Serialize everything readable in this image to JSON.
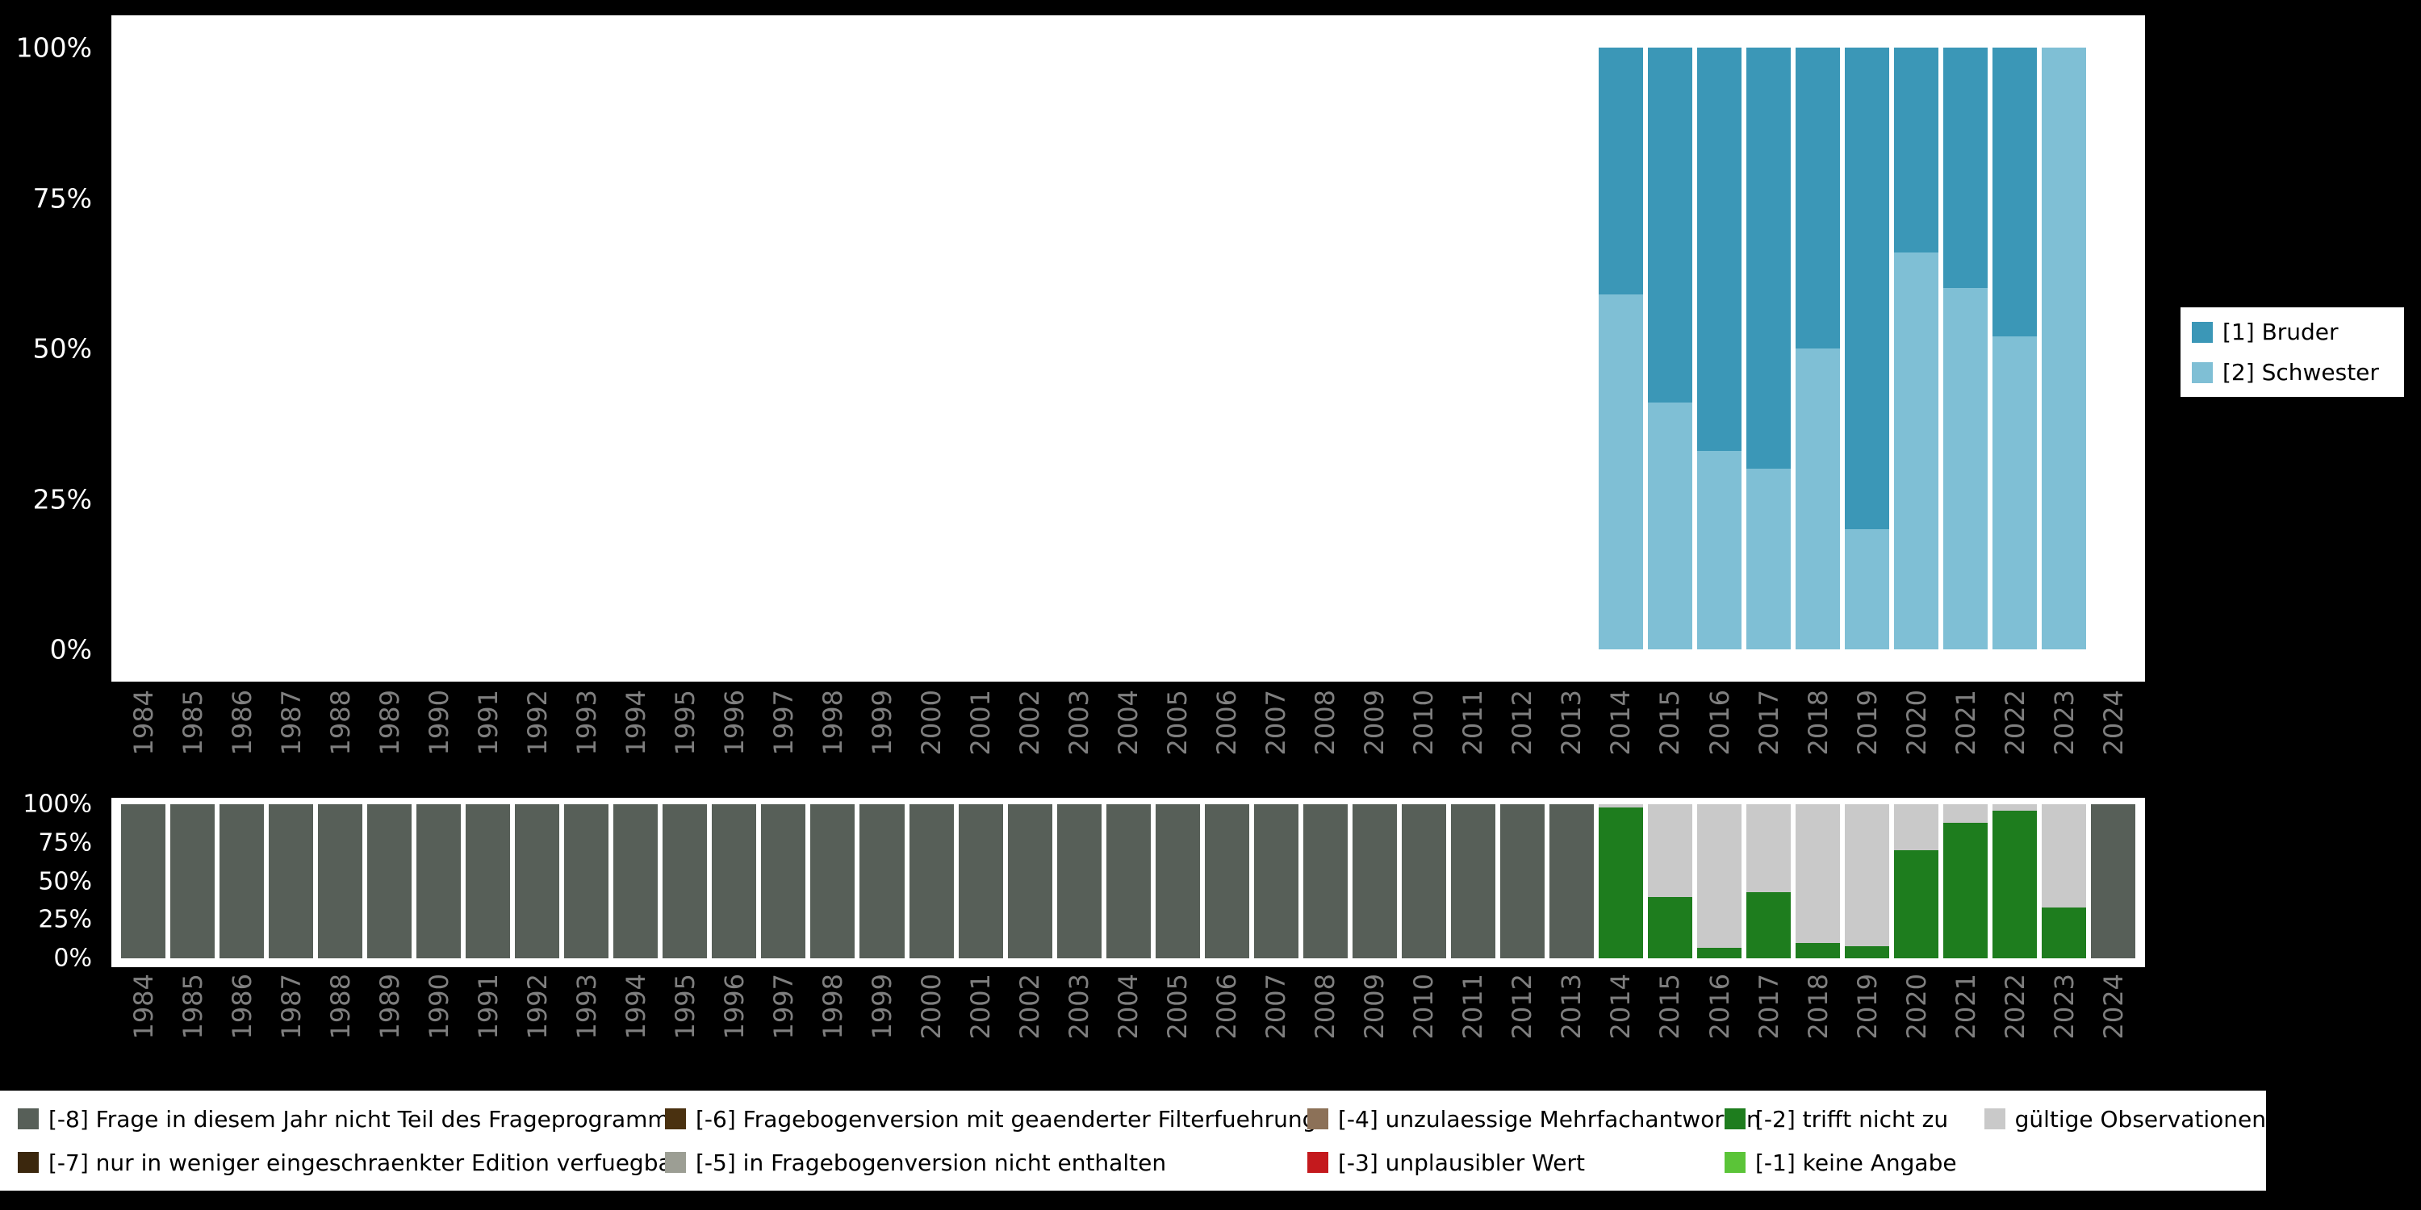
{
  "colors": {
    "background": "#000000",
    "panel": "#ffffff",
    "axis_text": "#ffffff",
    "year_text": "#7f7f7f",
    "bruder": "#3b97b7",
    "schwester": "#7fbfd5",
    "m8": "#575f58",
    "m7": "#3b270d",
    "m6": "#4a3110",
    "m5": "#9c9e94",
    "m4": "#8c7158",
    "m3": "#c4191d",
    "m2": "#1e7d1e",
    "m1": "#5bc438",
    "valid": "#c9c9c9"
  },
  "chart_data": [
    {
      "id": "value-distribution",
      "type": "bar",
      "stacked": true,
      "percent": true,
      "grid": false,
      "legend_position": "right",
      "ylim": [
        0,
        100
      ],
      "y_ticks": [
        "100%",
        "75%",
        "50%",
        "25%",
        "0%"
      ],
      "categories": [
        "1984",
        "1985",
        "1986",
        "1987",
        "1988",
        "1989",
        "1990",
        "1991",
        "1992",
        "1993",
        "1994",
        "1995",
        "1996",
        "1997",
        "1998",
        "1999",
        "2000",
        "2001",
        "2002",
        "2003",
        "2004",
        "2005",
        "2006",
        "2007",
        "2008",
        "2009",
        "2010",
        "2011",
        "2012",
        "2013",
        "2014",
        "2015",
        "2016",
        "2017",
        "2018",
        "2019",
        "2020",
        "2021",
        "2022",
        "2023",
        "2024"
      ],
      "series": [
        {
          "key": "schwester",
          "name": "[2] Schwester",
          "color_key": "schwester",
          "values": [
            null,
            null,
            null,
            null,
            null,
            null,
            null,
            null,
            null,
            null,
            null,
            null,
            null,
            null,
            null,
            null,
            null,
            null,
            null,
            null,
            null,
            null,
            null,
            null,
            null,
            null,
            null,
            null,
            null,
            null,
            59,
            41,
            33,
            30,
            50,
            20,
            66,
            60,
            52,
            100,
            null
          ]
        },
        {
          "key": "bruder",
          "name": "[1] Bruder",
          "color_key": "bruder",
          "values": [
            null,
            null,
            null,
            null,
            null,
            null,
            null,
            null,
            null,
            null,
            null,
            null,
            null,
            null,
            null,
            null,
            null,
            null,
            null,
            null,
            null,
            null,
            null,
            null,
            null,
            null,
            null,
            null,
            null,
            null,
            41,
            59,
            67,
            70,
            50,
            80,
            34,
            40,
            48,
            0,
            null
          ]
        }
      ]
    },
    {
      "id": "missing-codes",
      "type": "bar",
      "stacked": true,
      "percent": true,
      "grid": false,
      "legend_position": "bottom",
      "ylim": [
        0,
        100
      ],
      "y_ticks": [
        "100%",
        "75%",
        "50%",
        "25%",
        "0%"
      ],
      "categories": [
        "1984",
        "1985",
        "1986",
        "1987",
        "1988",
        "1989",
        "1990",
        "1991",
        "1992",
        "1993",
        "1994",
        "1995",
        "1996",
        "1997",
        "1998",
        "1999",
        "2000",
        "2001",
        "2002",
        "2003",
        "2004",
        "2005",
        "2006",
        "2007",
        "2008",
        "2009",
        "2010",
        "2011",
        "2012",
        "2013",
        "2014",
        "2015",
        "2016",
        "2017",
        "2018",
        "2019",
        "2020",
        "2021",
        "2022",
        "2023",
        "2024"
      ],
      "series": [
        {
          "key": "trifft-nicht-zu",
          "name": "[-2] trifft nicht zu",
          "color_key": "m2",
          "values": [
            0,
            0,
            0,
            0,
            0,
            0,
            0,
            0,
            0,
            0,
            0,
            0,
            0,
            0,
            0,
            0,
            0,
            0,
            0,
            0,
            0,
            0,
            0,
            0,
            0,
            0,
            0,
            0,
            0,
            0,
            98,
            40,
            7,
            43,
            10,
            8,
            70,
            88,
            96,
            33,
            0
          ]
        },
        {
          "key": "gueltige-observationen",
          "name": "gültige Observationen",
          "color_key": "valid",
          "values": [
            0,
            0,
            0,
            0,
            0,
            0,
            0,
            0,
            0,
            0,
            0,
            0,
            0,
            0,
            0,
            0,
            0,
            0,
            0,
            0,
            0,
            0,
            0,
            0,
            0,
            0,
            0,
            0,
            0,
            0,
            2,
            60,
            93,
            57,
            90,
            92,
            30,
            12,
            4,
            67,
            0
          ]
        },
        {
          "key": "nicht-teil-des-frageprogramms",
          "name": "[-8] Frage in diesem Jahr nicht Teil des Frageprogramms",
          "color_key": "m8",
          "values": [
            100,
            100,
            100,
            100,
            100,
            100,
            100,
            100,
            100,
            100,
            100,
            100,
            100,
            100,
            100,
            100,
            100,
            100,
            100,
            100,
            100,
            100,
            100,
            100,
            100,
            100,
            100,
            100,
            100,
            100,
            0,
            0,
            0,
            0,
            0,
            0,
            0,
            0,
            0,
            0,
            100
          ]
        }
      ]
    }
  ],
  "legend_top": {
    "items": [
      {
        "label": "[1] Bruder",
        "color_key": "bruder"
      },
      {
        "label": "[2] Schwester",
        "color_key": "schwester"
      }
    ]
  },
  "legend_bottom": {
    "columns": [
      [
        {
          "label": "[-8] Frage in diesem Jahr nicht Teil des Frageprogramms",
          "color_key": "m8"
        },
        {
          "label": "[-7] nur in weniger eingeschraenkter Edition verfuegbar",
          "color_key": "m7"
        }
      ],
      [
        {
          "label": "[-6] Fragebogenversion mit geaenderter Filterfuehrung",
          "color_key": "m6"
        },
        {
          "label": "[-5] in Fragebogenversion nicht enthalten",
          "color_key": "m5"
        }
      ],
      [
        {
          "label": "[-4] unzulaessige Mehrfachantworten",
          "color_key": "m4"
        },
        {
          "label": "[-3] unplausibler Wert",
          "color_key": "m3"
        }
      ],
      [
        {
          "label": "[-2] trifft nicht zu",
          "color_key": "m2"
        },
        {
          "label": "[-1] keine Angabe",
          "color_key": "m1"
        }
      ],
      [
        {
          "label": "gültige Observationen",
          "color_key": "valid"
        }
      ]
    ]
  }
}
